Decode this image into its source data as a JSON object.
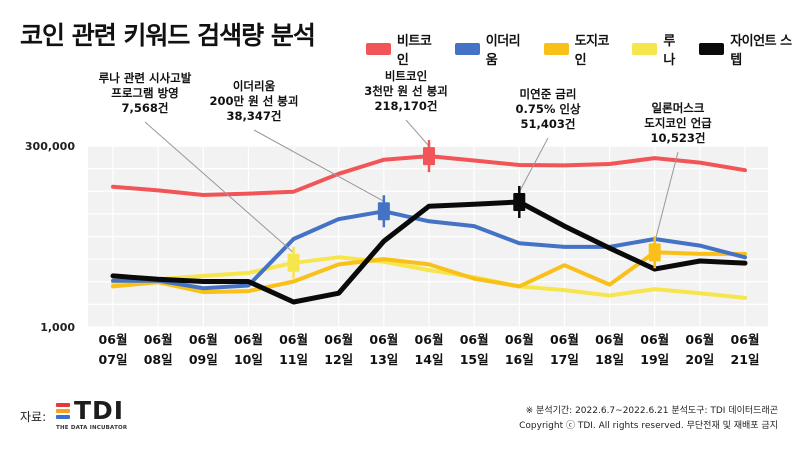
{
  "title": "코인 관련 키워드 검색량 분석",
  "legend": [
    {
      "name": "비트코인",
      "color": "#F25557"
    },
    {
      "name": "이더리움",
      "color": "#4472C4"
    },
    {
      "name": "도지코인",
      "color": "#F9C01A"
    },
    {
      "name": "루나",
      "color": "#F6E54C"
    },
    {
      "name": "자이언트 스텝",
      "color": "#0A0A0A"
    }
  ],
  "chart_data": {
    "type": "line",
    "title": "코인 관련 키워드 검색량 분석",
    "xlabel": "",
    "ylabel": "",
    "y_ticks": [
      "300,000",
      "1,000"
    ],
    "y_scale": "log",
    "ylim": [
      1000,
      300000
    ],
    "categories": [
      [
        "06월",
        "07일"
      ],
      [
        "06월",
        "08일"
      ],
      [
        "06월",
        "09일"
      ],
      [
        "06월",
        "10일"
      ],
      [
        "06월",
        "11일"
      ],
      [
        "06월",
        "12일"
      ],
      [
        "06월",
        "13일"
      ],
      [
        "06월",
        "14일"
      ],
      [
        "06월",
        "15일"
      ],
      [
        "06월",
        "16일"
      ],
      [
        "06월",
        "17일"
      ],
      [
        "06월",
        "18일"
      ],
      [
        "06월",
        "19일"
      ],
      [
        "06월",
        "20일"
      ],
      [
        "06월",
        "21일"
      ]
    ],
    "grid": true,
    "legend_position": "top-right",
    "series": [
      {
        "name": "비트코인",
        "color": "#F25557",
        "width": 4,
        "values": [
          83000,
          74000,
          64000,
          67000,
          71000,
          125000,
          195000,
          218170,
          190000,
          165000,
          163000,
          170000,
          205000,
          178000,
          140000
        ]
      },
      {
        "name": "이더리움",
        "color": "#4472C4",
        "width": 4,
        "values": [
          4300,
          4300,
          3400,
          3700,
          16000,
          30000,
          38347,
          28000,
          24000,
          14000,
          12500,
          12500,
          16000,
          13000,
          9000
        ]
      },
      {
        "name": "도지코인",
        "color": "#F9C01A",
        "width": 4,
        "values": [
          3600,
          4100,
          3000,
          3100,
          4200,
          7200,
          8500,
          7200,
          4600,
          3600,
          7000,
          3800,
          10523,
          10000,
          10000
        ]
      },
      {
        "name": "루나",
        "color": "#F6E54C",
        "width": 4,
        "values": [
          4000,
          4500,
          5000,
          5500,
          7568,
          9000,
          7800,
          6000,
          4800,
          3600,
          3200,
          2700,
          3300,
          2900,
          2500
        ]
      },
      {
        "name": "자이언트 스텝",
        "color": "#0A0A0A",
        "width": 5,
        "values": [
          5000,
          4500,
          4200,
          4200,
          2200,
          2900,
          15000,
          45000,
          48000,
          51403,
          24000,
          12000,
          6200,
          8000,
          7500
        ]
      }
    ],
    "annotations": [
      {
        "series": "루나",
        "index": 4,
        "lines": [
          "루나 관련 시사고발",
          "프로그램 방영",
          "7,568건"
        ]
      },
      {
        "series": "이더리움",
        "index": 6,
        "lines": [
          "이더리움",
          "200만 원 선 붕괴",
          "38,347건"
        ]
      },
      {
        "series": "비트코인",
        "index": 7,
        "lines": [
          "비트코인",
          "3천만 원 선 붕괴",
          "218,170건"
        ]
      },
      {
        "series": "자이언트 스텝",
        "index": 9,
        "lines": [
          "미연준 금리",
          "0.75% 인상",
          "51,403건"
        ]
      },
      {
        "series": "도지코인",
        "index": 12,
        "lines": [
          "일론머스크",
          "도지코인 언급",
          "10,523건"
        ]
      }
    ]
  },
  "footer": {
    "source_label": "자료:",
    "logo_text": "TDI",
    "logo_sub": "THE DATA INCUBATOR",
    "logo_colors": [
      "#E53935",
      "#F4A21B",
      "#3B6FD6"
    ],
    "period": "※ 분석기간: 2022.6.7~2022.6.21   분석도구: TDI 데이터드래곤",
    "copyright": "Copyright ⓒ TDI. All rights reserved. 무단전재 및 재배포 금지"
  }
}
